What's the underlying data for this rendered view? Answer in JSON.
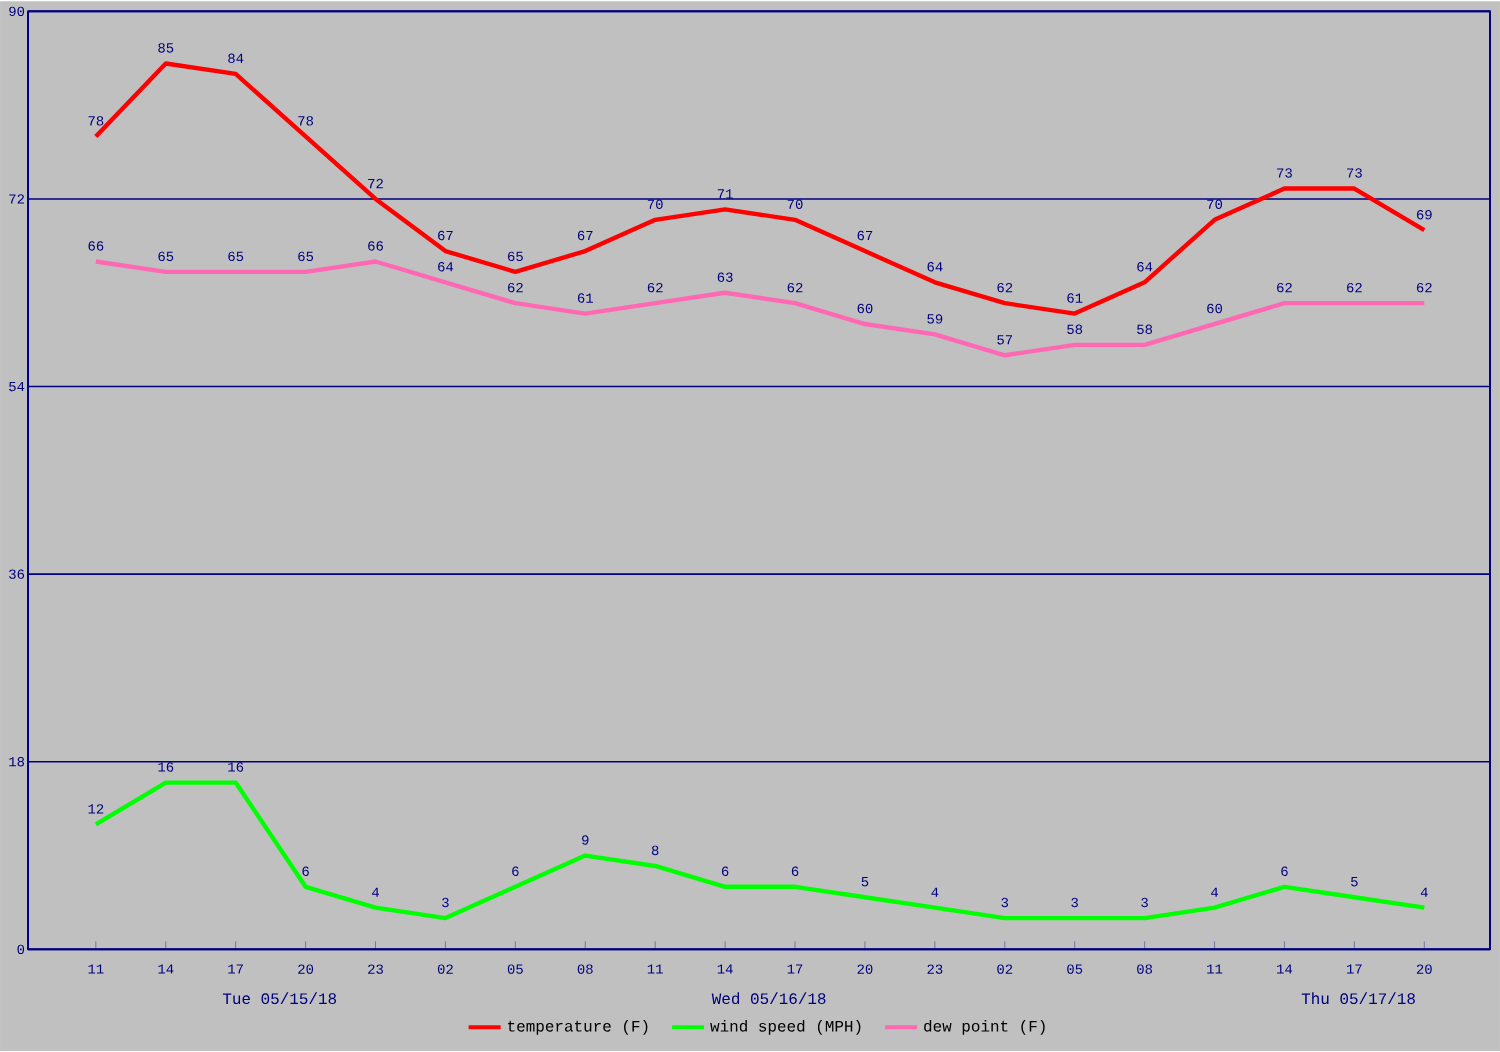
{
  "chart_data": {
    "type": "line",
    "categories": [
      "11",
      "14",
      "17",
      "20",
      "23",
      "02",
      "05",
      "08",
      "11",
      "14",
      "17",
      "20",
      "23",
      "02",
      "05",
      "08",
      "11",
      "14",
      "17",
      "20"
    ],
    "series": [
      {
        "name": "temperature (F)",
        "color": "#ff0000",
        "values": [
          78,
          85,
          84,
          78,
          72,
          67,
          65,
          67,
          70,
          71,
          70,
          67,
          64,
          62,
          61,
          64,
          70,
          73,
          73,
          69
        ]
      },
      {
        "name": "wind speed (MPH)",
        "color": "#00ff00",
        "values": [
          12,
          16,
          16,
          6,
          4,
          3,
          6,
          9,
          8,
          6,
          6,
          5,
          4,
          3,
          3,
          3,
          4,
          6,
          5,
          4
        ]
      },
      {
        "name": "dew point (F)",
        "color": "#ff69b4",
        "values": [
          66,
          65,
          65,
          65,
          66,
          64,
          62,
          61,
          62,
          63,
          62,
          60,
          59,
          57,
          58,
          58,
          60,
          62,
          62,
          62
        ]
      }
    ],
    "ylim": [
      0,
      90
    ],
    "yticks": [
      0,
      18,
      36,
      54,
      72,
      90
    ],
    "grid": "y",
    "legend": "bottom",
    "data_labels": true,
    "marker": "none",
    "line_style": "solid",
    "annotations": [
      "Tue 05/15/18",
      "Wed 05/16/18",
      "Thu 05/17/18"
    ]
  }
}
